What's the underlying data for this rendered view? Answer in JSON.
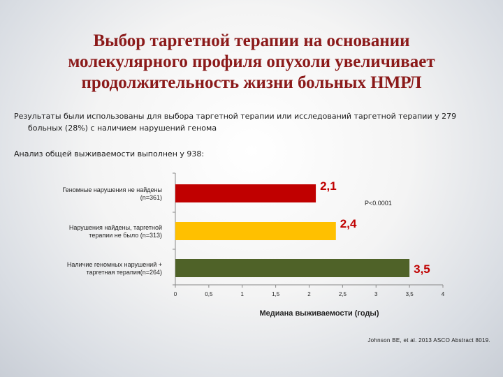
{
  "title": {
    "line1": "Выбор таргетной терапии на основании",
    "line2": "молекулярного профиля опухоли увеличивает",
    "line3": "продолжительность жизни больных НМРЛ"
  },
  "intro": {
    "line1": "Результаты были использованы для выбора таргетной терапии или исследований таргетной терапии у 279",
    "line2": "больных (28%) с наличием нарушений генома"
  },
  "analysis": "Анализ общей выживаемости выполнен у 938:",
  "chart_data": {
    "type": "bar",
    "orientation": "horizontal",
    "categories": [
      [
        "Геномные нарушения не найдены",
        "(n=361)"
      ],
      [
        "Нарушения найдены, таргетной",
        "терапии не было (n=313)"
      ],
      [
        "Наличие геномных нарушений +",
        "таргетная терапия(n=264)"
      ]
    ],
    "values": [
      2.1,
      2.4,
      3.5
    ],
    "data_labels": [
      "2,1",
      "2,4",
      "3,5"
    ],
    "colors": [
      "#c00000",
      "#ffc000",
      "#4f6228"
    ],
    "label_colors": [
      "#c00000",
      "#c00000",
      "#c00000"
    ],
    "xlabel": "Медиана выживаемости (годы)",
    "xlim": [
      0,
      4
    ],
    "xticks": [
      "0",
      "0,5",
      "1",
      "1,5",
      "2",
      "2,5",
      "3",
      "3,5",
      "4"
    ],
    "annotation": "P<0.0001",
    "grid": false
  },
  "reference": "Johnson BE, et al. 2013 ASCO Abstract 8019."
}
